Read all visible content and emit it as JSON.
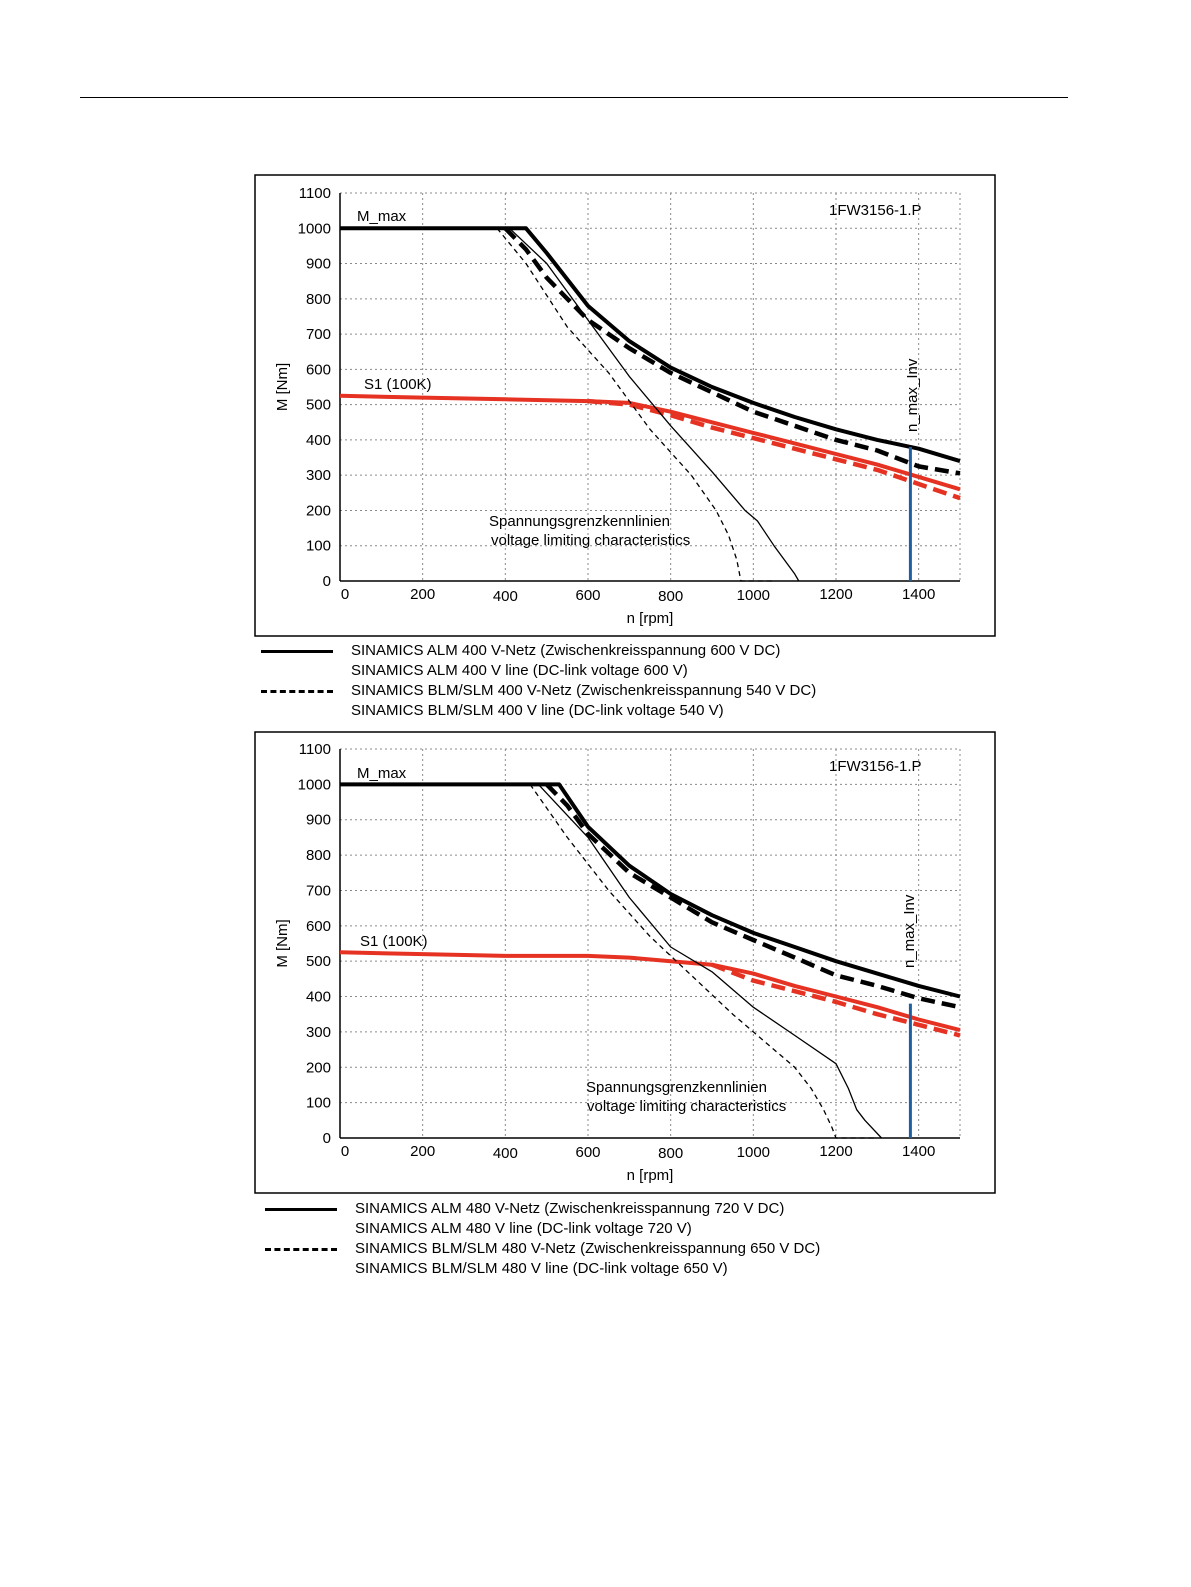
{
  "chart_data": [
    {
      "type": "line",
      "model_label": "1FW3156-1.P",
      "xlabel": "n [rpm]",
      "ylabel": "M [Nm]",
      "xlim": [
        0,
        1500
      ],
      "ylim": [
        0,
        1100
      ],
      "x_ticks": [
        "0",
        "200",
        "400",
        "600",
        "800",
        "1000",
        "1200",
        "1400"
      ],
      "y_ticks": [
        "0",
        "100",
        "200",
        "300",
        "400",
        "500",
        "600",
        "700",
        "800",
        "900",
        "1000",
        "1100"
      ],
      "grid": true,
      "annotations": {
        "m_max": "M_max",
        "s1": "S1 (100K)",
        "vlimit_de": "Spannungsgrenzkennlinien",
        "vlimit_en": "voltage limiting characteristics",
        "n_max_inv": "n_max_Inv"
      },
      "n_max_inv_value": 1380,
      "series": [
        {
          "style": "thick-solid",
          "color": "#000000",
          "points": [
            [
              0,
              1000
            ],
            [
              450,
              1000
            ],
            [
              500,
              930
            ],
            [
              600,
              780
            ],
            [
              700,
              680
            ],
            [
              800,
              605
            ],
            [
              900,
              550
            ],
            [
              1000,
              505
            ],
            [
              1100,
              465
            ],
            [
              1200,
              430
            ],
            [
              1300,
              400
            ],
            [
              1400,
              375
            ],
            [
              1500,
              340
            ]
          ]
        },
        {
          "style": "thick-dash",
          "color": "#000000",
          "points": [
            [
              400,
              1000
            ],
            [
              450,
              940
            ],
            [
              500,
              860
            ],
            [
              600,
              740
            ],
            [
              700,
              660
            ],
            [
              800,
              590
            ],
            [
              900,
              535
            ],
            [
              1000,
              480
            ],
            [
              1100,
              440
            ],
            [
              1200,
              400
            ],
            [
              1300,
              370
            ],
            [
              1400,
              325
            ],
            [
              1500,
              305
            ]
          ]
        },
        {
          "style": "thick-solid",
          "color": "#e63222",
          "points": [
            [
              0,
              525
            ],
            [
              200,
              520
            ],
            [
              400,
              515
            ],
            [
              600,
              510
            ],
            [
              700,
              505
            ],
            [
              800,
              480
            ],
            [
              900,
              450
            ],
            [
              1000,
              420
            ],
            [
              1100,
              390
            ],
            [
              1200,
              360
            ],
            [
              1300,
              330
            ],
            [
              1400,
              295
            ],
            [
              1500,
              260
            ]
          ]
        },
        {
          "style": "thick-dash",
          "color": "#e63222",
          "points": [
            [
              600,
              510
            ],
            [
              700,
              500
            ],
            [
              800,
              470
            ],
            [
              900,
              435
            ],
            [
              1000,
              405
            ],
            [
              1100,
              375
            ],
            [
              1200,
              345
            ],
            [
              1300,
              315
            ],
            [
              1400,
              275
            ],
            [
              1500,
              235
            ]
          ]
        },
        {
          "style": "thin-solid",
          "color": "#000000",
          "points": [
            [
              410,
              1000
            ],
            [
              500,
              900
            ],
            [
              600,
              740
            ],
            [
              700,
              580
            ],
            [
              800,
              440
            ],
            [
              900,
              310
            ],
            [
              980,
              200
            ],
            [
              1010,
              170
            ],
            [
              1050,
              100
            ],
            [
              1100,
              20
            ],
            [
              1110,
              0
            ]
          ]
        },
        {
          "style": "thin-dash",
          "color": "#000000",
          "points": [
            [
              380,
              1000
            ],
            [
              450,
              900
            ],
            [
              550,
              720
            ],
            [
              650,
              590
            ],
            [
              750,
              430
            ],
            [
              850,
              300
            ],
            [
              910,
              200
            ],
            [
              940,
              130
            ],
            [
              960,
              60
            ],
            [
              970,
              0
            ],
            [
              1000,
              0
            ],
            [
              1050,
              0
            ]
          ]
        }
      ],
      "legend": [
        {
          "style": "solid",
          "lines": [
            "SINAMICS ALM  400 V-Netz (Zwischenkreisspannung 600 V DC)",
            "SINAMICS ALM  400 V line (DC-link voltage 600 V)"
          ]
        },
        {
          "style": "dash",
          "lines": [
            "SINAMICS BLM/SLM  400 V-Netz (Zwischenkreisspannung 540 V DC)",
            "SINAMICS BLM/SLM  400 V line (DC-link voltage 540 V)"
          ]
        }
      ]
    },
    {
      "type": "line",
      "model_label": "1FW3156-1.P",
      "xlabel": "n [rpm]",
      "ylabel": "M [Nm]",
      "xlim": [
        0,
        1500
      ],
      "ylim": [
        0,
        1100
      ],
      "x_ticks": [
        "0",
        "200",
        "400",
        "600",
        "800",
        "1000",
        "1200",
        "1400"
      ],
      "y_ticks": [
        "0",
        "100",
        "200",
        "300",
        "400",
        "500",
        "600",
        "700",
        "800",
        "900",
        "1000",
        "1100"
      ],
      "grid": true,
      "annotations": {
        "m_max": "M_max",
        "s1": "S1 (100K)",
        "vlimit_de": "Spannungsgrenzkennlinien",
        "vlimit_en": "voltage limiting characteristics",
        "n_max_inv": "n_max_Inv"
      },
      "n_max_inv_value": 1380,
      "series": [
        {
          "style": "thick-solid",
          "color": "#000000",
          "points": [
            [
              0,
              1000
            ],
            [
              530,
              1000
            ],
            [
              600,
              880
            ],
            [
              700,
              770
            ],
            [
              800,
              690
            ],
            [
              900,
              630
            ],
            [
              1000,
              580
            ],
            [
              1100,
              540
            ],
            [
              1200,
              500
            ],
            [
              1300,
              465
            ],
            [
              1400,
              430
            ],
            [
              1500,
              400
            ]
          ]
        },
        {
          "style": "thick-dash",
          "color": "#000000",
          "points": [
            [
              500,
              1000
            ],
            [
              550,
              940
            ],
            [
              600,
              860
            ],
            [
              700,
              750
            ],
            [
              800,
              680
            ],
            [
              900,
              610
            ],
            [
              1000,
              560
            ],
            [
              1100,
              510
            ],
            [
              1200,
              460
            ],
            [
              1300,
              430
            ],
            [
              1400,
              395
            ],
            [
              1500,
              370
            ]
          ]
        },
        {
          "style": "thick-solid",
          "color": "#e63222",
          "points": [
            [
              0,
              525
            ],
            [
              200,
              520
            ],
            [
              400,
              515
            ],
            [
              600,
              515
            ],
            [
              700,
              510
            ],
            [
              800,
              500
            ],
            [
              900,
              490
            ],
            [
              1000,
              465
            ],
            [
              1100,
              430
            ],
            [
              1200,
              400
            ],
            [
              1300,
              370
            ],
            [
              1400,
              335
            ],
            [
              1500,
              305
            ]
          ]
        },
        {
          "style": "thick-dash",
          "color": "#e63222",
          "points": [
            [
              900,
              490
            ],
            [
              1000,
              445
            ],
            [
              1100,
              415
            ],
            [
              1200,
              385
            ],
            [
              1300,
              350
            ],
            [
              1400,
              320
            ],
            [
              1500,
              290
            ]
          ]
        },
        {
          "style": "thin-solid",
          "color": "#000000",
          "points": [
            [
              480,
              1000
            ],
            [
              600,
              850
            ],
            [
              700,
              680
            ],
            [
              800,
              540
            ],
            [
              900,
              470
            ],
            [
              1000,
              370
            ],
            [
              1100,
              290
            ],
            [
              1200,
              210
            ],
            [
              1230,
              140
            ],
            [
              1250,
              80
            ],
            [
              1270,
              50
            ],
            [
              1310,
              0
            ]
          ]
        },
        {
          "style": "thin-dash",
          "color": "#000000",
          "points": [
            [
              460,
              1000
            ],
            [
              550,
              850
            ],
            [
              650,
              700
            ],
            [
              750,
              570
            ],
            [
              850,
              460
            ],
            [
              950,
              350
            ],
            [
              1050,
              250
            ],
            [
              1100,
              200
            ],
            [
              1140,
              140
            ],
            [
              1170,
              80
            ],
            [
              1190,
              30
            ],
            [
              1200,
              0
            ],
            [
              1300,
              0
            ]
          ]
        }
      ],
      "legend": [
        {
          "style": "solid",
          "lines": [
            "SINAMICS ALM  480 V-Netz (Zwischenkreisspannung 720 V DC)",
            "SINAMICS ALM  480 V line (DC-link voltage 720 V)"
          ]
        },
        {
          "style": "dash",
          "lines": [
            "SINAMICS BLM/SLM  480 V-Netz (Zwischenkreisspannung 650 V DC)",
            "SINAMICS BLM/SLM  480 V line (DC-link voltage 650 V)"
          ]
        }
      ]
    }
  ]
}
